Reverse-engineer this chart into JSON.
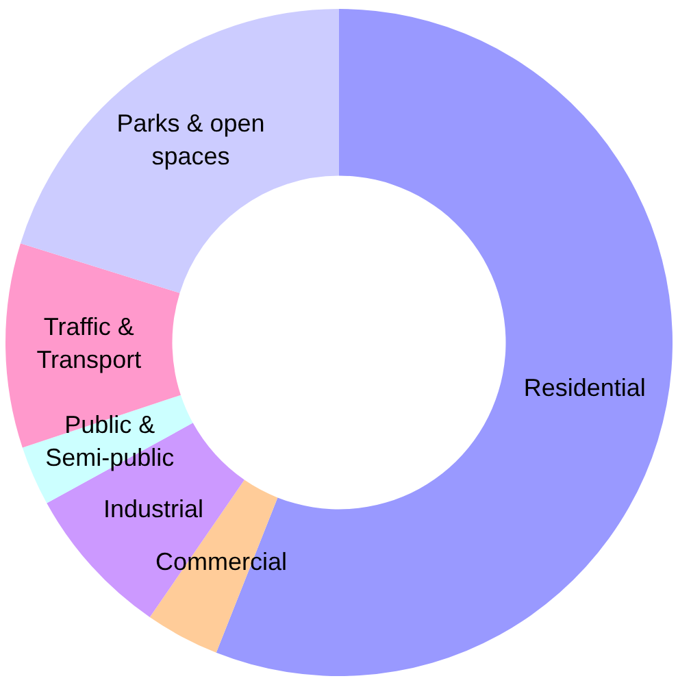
{
  "chart_data": {
    "type": "donut",
    "categories": [
      "Residential",
      "Commercial",
      "Industrial",
      "Public & Semi-public",
      "Traffic & Transport",
      "Parks & open spaces"
    ],
    "values": [
      56,
      3.6,
      7.4,
      2.9,
      9.9,
      20.2
    ],
    "colors": [
      "#9999ff",
      "#ffcc99",
      "#cc99ff",
      "#ccffff",
      "#ff99cc",
      "#ccccff"
    ],
    "legend": false
  }
}
